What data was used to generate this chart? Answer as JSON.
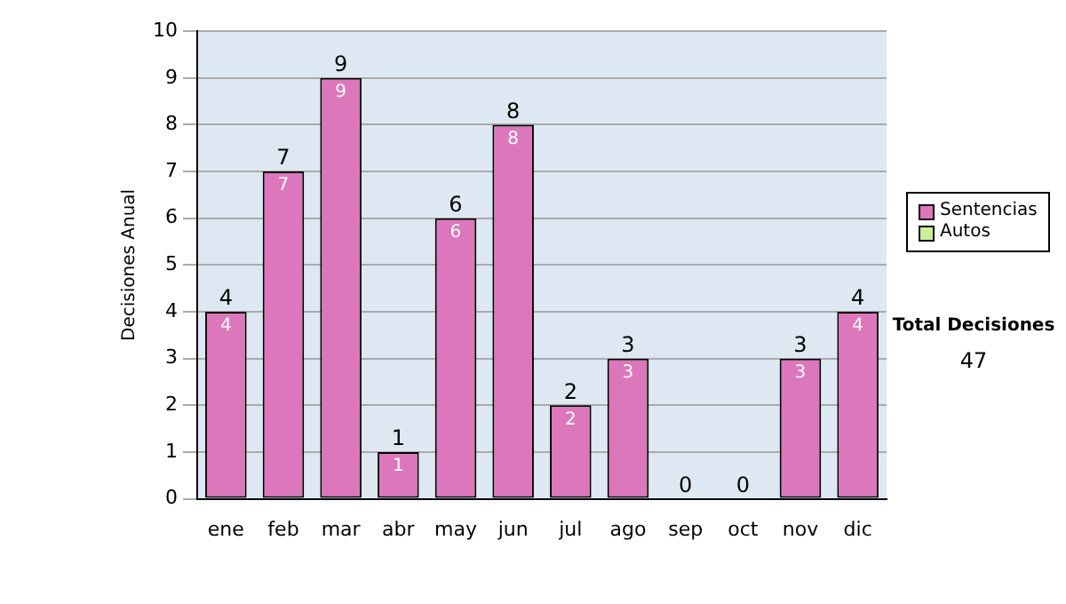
{
  "chart_data": {
    "type": "bar",
    "ylabel": "Decisiones Anual",
    "categories": [
      "ene",
      "feb",
      "mar",
      "abr",
      "may",
      "jun",
      "jul",
      "ago",
      "sep",
      "oct",
      "nov",
      "dic"
    ],
    "series": [
      {
        "name": "Sentencias",
        "color": "#dd77bb",
        "values": [
          4,
          7,
          9,
          1,
          6,
          8,
          2,
          3,
          0,
          0,
          3,
          4
        ],
        "value_labels": [
          "4",
          "7",
          "9",
          "1",
          "6",
          "8",
          "2",
          "3",
          null,
          null,
          "3",
          "4"
        ]
      },
      {
        "name": "Autos",
        "color": "#ccee99",
        "values": [
          0,
          0,
          0,
          0,
          0,
          0,
          0,
          0,
          0,
          0,
          0,
          0
        ]
      }
    ],
    "stacked": true,
    "totals": [
      "4",
      "7",
      "9",
      "1",
      "6",
      "8",
      "2",
      "3",
      "0",
      "0",
      "3",
      "4"
    ],
    "ylim": [
      0,
      10
    ],
    "yticks": [
      0,
      1,
      2,
      3,
      4,
      5,
      6,
      7,
      8,
      9,
      10
    ],
    "grid": "y",
    "legend": "right",
    "annotations": [
      "Total Decisiones",
      "47"
    ]
  }
}
